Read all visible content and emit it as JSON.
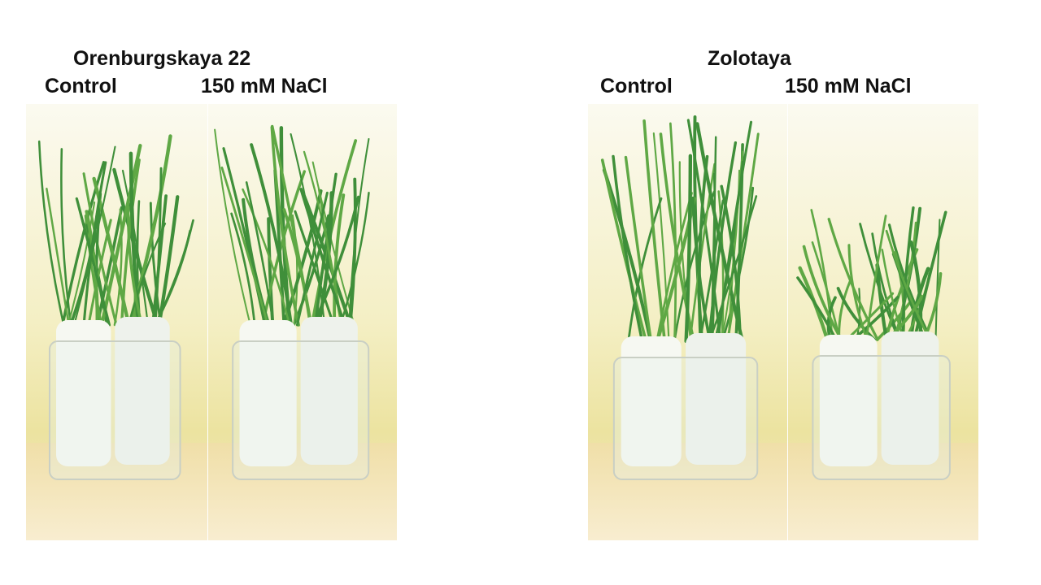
{
  "panels": [
    {
      "title": "Orenburgskaya 22",
      "labels": [
        "Control",
        "150 mM NaCl"
      ]
    },
    {
      "title": "Zolotaya",
      "labels": [
        "Control",
        "150 mM NaCl"
      ]
    }
  ]
}
